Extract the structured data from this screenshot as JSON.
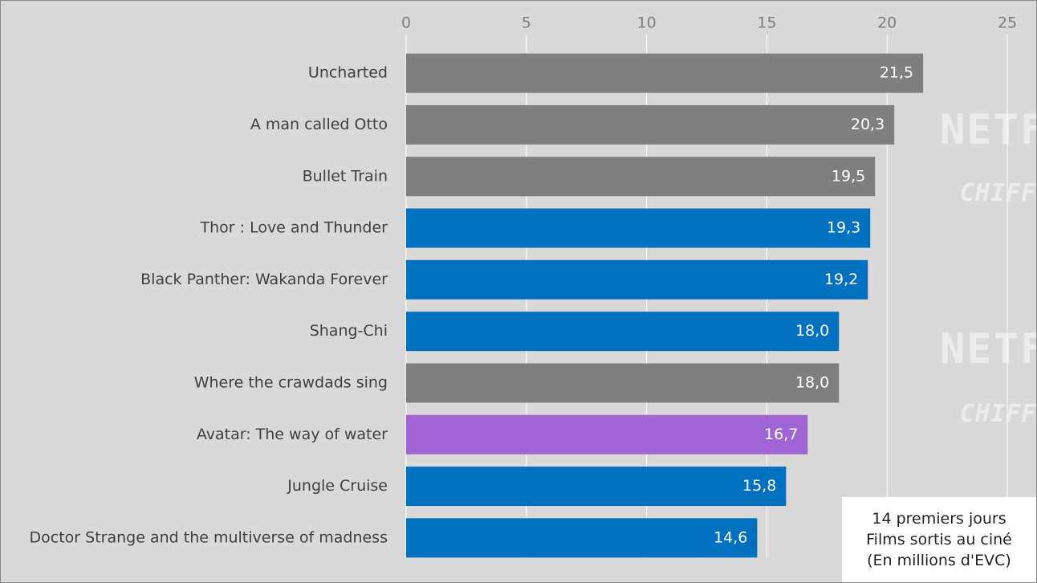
{
  "chart_data": {
    "type": "bar",
    "orientation": "horizontal",
    "categories": [
      "Uncharted",
      "A man called Otto",
      "Bullet Train",
      "Thor : Love and Thunder",
      "Black Panther: Wakanda Forever",
      "Shang-Chi",
      "Where the crawdads sing",
      "Avatar: The way of water",
      "Jungle Cruise",
      "Doctor Strange and the multiverse of madness"
    ],
    "values": [
      21.5,
      20.3,
      19.5,
      19.3,
      19.2,
      18.0,
      18.0,
      16.7,
      15.8,
      14.6
    ],
    "value_labels": [
      "21,5",
      "20,3",
      "19,5",
      "19,3",
      "19,2",
      "18,0",
      "18,0",
      "16,7",
      "15,8",
      "14,6"
    ],
    "bar_colors": [
      "#7f7f7f",
      "#7f7f7f",
      "#7f7f7f",
      "#0070c0",
      "#0070c0",
      "#0070c0",
      "#7f7f7f",
      "#a064d4",
      "#0070c0",
      "#0070c0"
    ],
    "xlim": [
      0,
      25
    ],
    "xticks": [
      0,
      5,
      10,
      15,
      20,
      25
    ],
    "xaxis_position": "top",
    "grid": true,
    "title": "",
    "xlabel": "",
    "ylabel": ""
  },
  "note": {
    "lines": [
      "14 premiers jours",
      "Films sortis au ciné",
      "(En millions d'EVC)"
    ]
  },
  "watermark": {
    "big": "NETFLIX",
    "small": "CHIFFRES"
  },
  "colors": {
    "background": "#d9d9d9",
    "gridline": "#ffffff",
    "axis_text": "#7f7f7f",
    "category_text": "#404040",
    "value_text": "#ffffff"
  }
}
